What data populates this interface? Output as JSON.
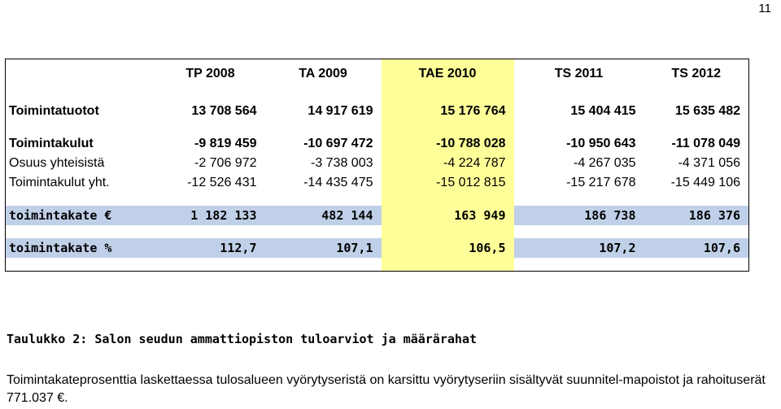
{
  "page_number": "11",
  "table": {
    "columns": [
      "TP 2008",
      "TA 2009",
      "TAE 2010",
      "TS 2011",
      "TS 2012"
    ],
    "rows": {
      "toimintatuotot": {
        "label": "Toimintatuotot",
        "values": [
          "13 708 564",
          "14 917 619",
          "15 176 764",
          "15 404 415",
          "15 635 482"
        ]
      },
      "toimintakulut": {
        "label": "Toimintakulut",
        "values": [
          "-9 819 459",
          "-10 697 472",
          "-10 788 028",
          "-10 950 643",
          "-11 078 049"
        ]
      },
      "osuus": {
        "label": "Osuus yhteisistä",
        "values": [
          "-2 706 972",
          "-3 738 003",
          "-4 224 787",
          "-4 267 035",
          "-4 371 056"
        ]
      },
      "kulut_yht": {
        "label": "Toimintakulut yht.",
        "values": [
          "-12 526 431",
          "-14 435 475",
          "-15 012 815",
          "-15 217 678",
          "-15 449 106"
        ]
      },
      "toimintakate": {
        "label": "toimintakate €",
        "values": [
          "1 182 133",
          "482 144",
          "163 949",
          "186 738",
          "186 376"
        ]
      },
      "toimintakate_pct": {
        "label": "toimintakate %",
        "values": [
          "112,7",
          "107,1",
          "106,5",
          "107,2",
          "107,6"
        ]
      }
    }
  },
  "caption": "Taulukko 2: Salon seudun ammattiopiston tuloarviot ja määrärahat",
  "note": "Toimintakateprosenttia laskettaessa tulosalueen vyörytyseristä on karsittu vyörytyseriin sisältyvät suunnitel-mapoistot ja rahoituserät 771.037 €.",
  "colors": {
    "highlight_column": "#ffff99",
    "summary_row": "#c0d0e8"
  }
}
